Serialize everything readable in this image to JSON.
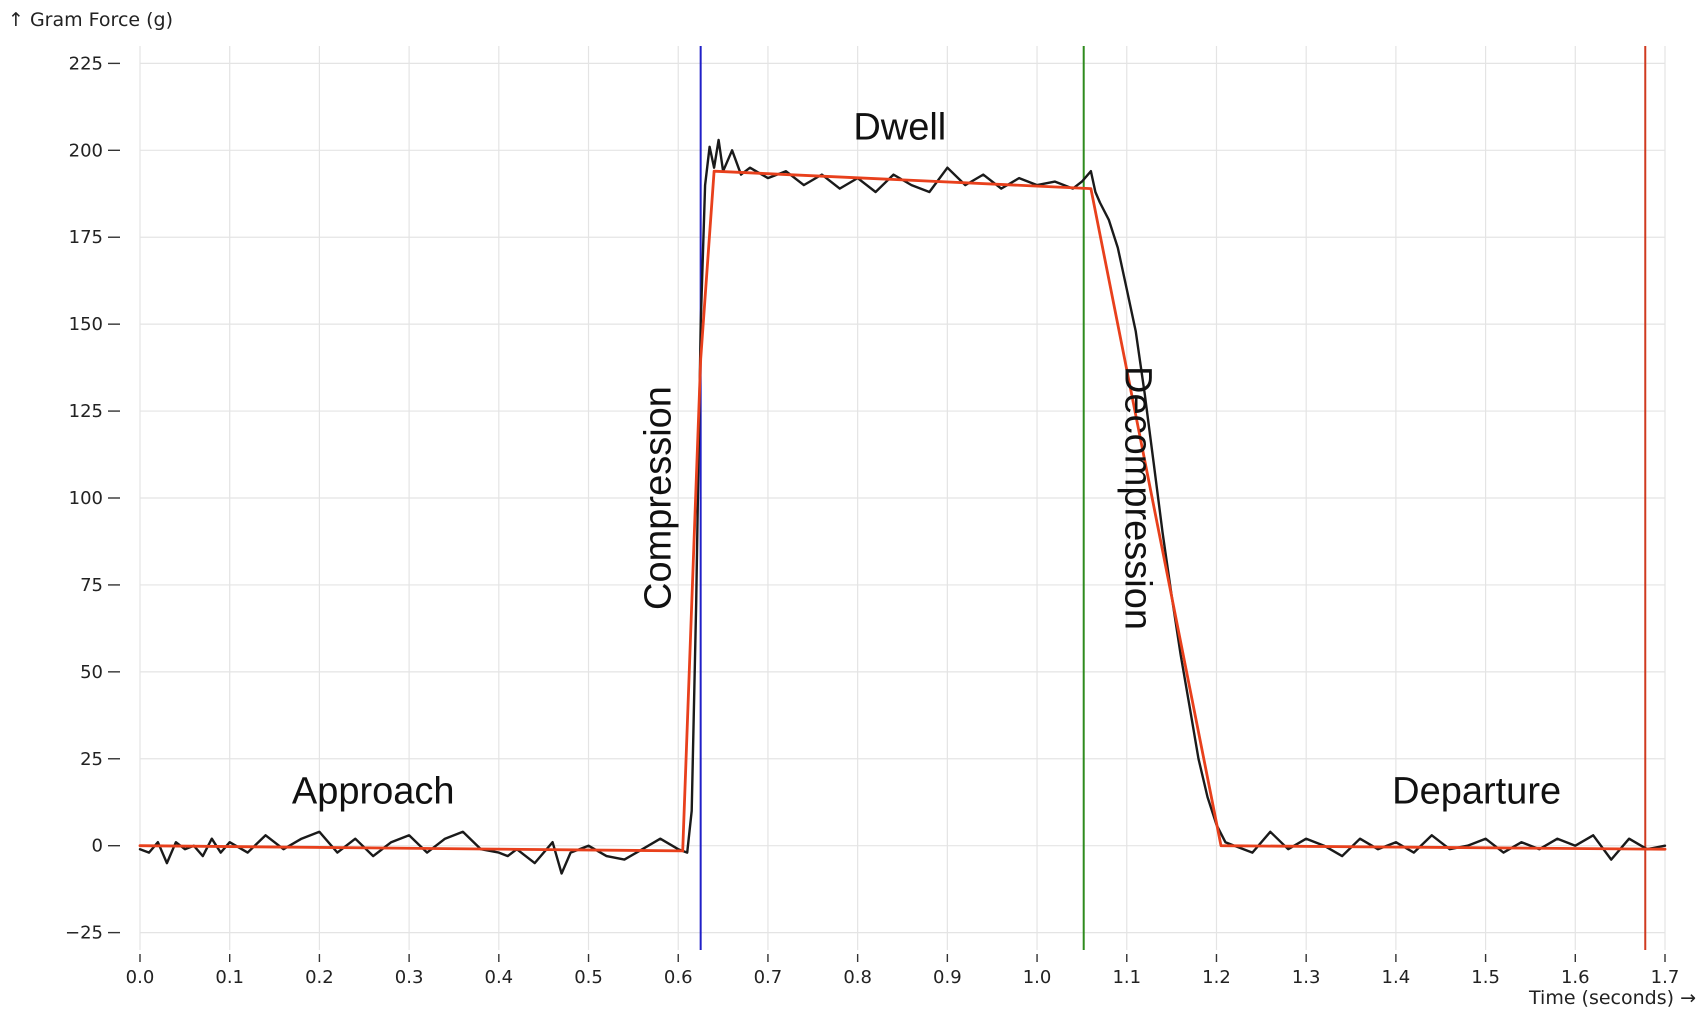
{
  "chart_data": {
    "type": "line",
    "xlabel": "Time (seconds) →",
    "ylabel": "↑ Gram Force (g)",
    "xlim": [
      0.0,
      1.7
    ],
    "ylim": [
      -30,
      230
    ],
    "x_ticks": [
      0.0,
      0.1,
      0.2,
      0.3,
      0.4,
      0.5,
      0.6,
      0.7,
      0.8,
      0.9,
      1.0,
      1.1,
      1.2,
      1.3,
      1.4,
      1.5,
      1.6,
      1.7
    ],
    "x_tick_labels": [
      "0.0",
      "0.1",
      "0.2",
      "0.3",
      "0.4",
      "0.5",
      "0.6",
      "0.7",
      "0.8",
      "0.9",
      "1.0",
      "1.1",
      "1.2",
      "1.3",
      "1.4",
      "1.5",
      "1.6",
      "1.7"
    ],
    "y_ticks": [
      -25,
      0,
      25,
      50,
      75,
      100,
      125,
      150,
      175,
      200,
      225
    ],
    "y_tick_labels": [
      "−25",
      "0",
      "25",
      "50",
      "75",
      "100",
      "125",
      "150",
      "175",
      "200",
      "225"
    ],
    "grid": true,
    "series": [
      {
        "color": "#1a1a1a",
        "x": [
          0.0,
          0.01,
          0.02,
          0.03,
          0.04,
          0.05,
          0.06,
          0.07,
          0.08,
          0.09,
          0.1,
          0.12,
          0.14,
          0.16,
          0.18,
          0.2,
          0.22,
          0.24,
          0.26,
          0.28,
          0.3,
          0.32,
          0.34,
          0.36,
          0.38,
          0.4,
          0.41,
          0.42,
          0.44,
          0.46,
          0.47,
          0.48,
          0.5,
          0.52,
          0.54,
          0.56,
          0.58,
          0.6,
          0.61,
          0.615,
          0.62,
          0.625,
          0.63,
          0.635,
          0.64,
          0.645,
          0.65,
          0.66,
          0.67,
          0.68,
          0.7,
          0.72,
          0.74,
          0.76,
          0.78,
          0.8,
          0.82,
          0.84,
          0.86,
          0.88,
          0.9,
          0.92,
          0.94,
          0.96,
          0.98,
          1.0,
          1.02,
          1.04,
          1.05,
          1.06,
          1.065,
          1.07,
          1.08,
          1.09,
          1.1,
          1.11,
          1.12,
          1.13,
          1.14,
          1.15,
          1.16,
          1.17,
          1.18,
          1.19,
          1.2,
          1.21,
          1.22,
          1.24,
          1.26,
          1.28,
          1.3,
          1.32,
          1.34,
          1.36,
          1.38,
          1.4,
          1.42,
          1.44,
          1.46,
          1.48,
          1.5,
          1.52,
          1.54,
          1.56,
          1.58,
          1.6,
          1.62,
          1.64,
          1.66,
          1.68,
          1.7
        ],
        "y": [
          -1,
          -2,
          1,
          -5,
          1,
          -1,
          0,
          -3,
          2,
          -2,
          1,
          -2,
          3,
          -1,
          2,
          4,
          -2,
          2,
          -3,
          1,
          3,
          -2,
          2,
          4,
          -1,
          -2,
          -3,
          -1,
          -5,
          1,
          -8,
          -2,
          0,
          -3,
          -4,
          -1,
          2,
          -1,
          -2,
          10,
          70,
          150,
          190,
          201,
          195,
          203,
          194,
          200,
          193,
          195,
          192,
          194,
          190,
          193,
          189,
          192,
          188,
          193,
          190,
          188,
          195,
          190,
          193,
          189,
          192,
          190,
          191,
          189,
          191,
          194,
          188,
          185,
          180,
          172,
          160,
          148,
          130,
          110,
          90,
          72,
          55,
          40,
          25,
          14,
          6,
          1,
          0,
          -2,
          4,
          -1,
          2,
          0,
          -3,
          2,
          -1,
          1,
          -2,
          3,
          -1,
          0,
          2,
          -2,
          1,
          -1,
          2,
          0,
          3,
          -4,
          2,
          -1,
          0
        ]
      },
      {
        "color": "#e8401c",
        "x": [
          0.0,
          0.605,
          0.625,
          0.64,
          1.06,
          1.205,
          1.7
        ],
        "y": [
          0,
          -1.5,
          140,
          194,
          189,
          0,
          -1
        ]
      }
    ],
    "vlines": [
      {
        "x": 0.625,
        "color": "#2020c8"
      },
      {
        "x": 1.052,
        "color": "#2e8b1e"
      },
      {
        "x": 1.678,
        "color": "#d03a20"
      }
    ],
    "annotations": [
      {
        "text": "Approach",
        "x": 0.26,
        "y": 15,
        "rotate": 0
      },
      {
        "text": "Compression",
        "x": 0.58,
        "y": 100,
        "rotate": -90
      },
      {
        "text": "Dwell",
        "x": 0.847,
        "y": 206,
        "rotate": 0
      },
      {
        "text": "Decompression",
        "x": 1.11,
        "y": 100,
        "rotate": 90
      },
      {
        "text": "Departure",
        "x": 1.49,
        "y": 15,
        "rotate": 0
      }
    ]
  }
}
